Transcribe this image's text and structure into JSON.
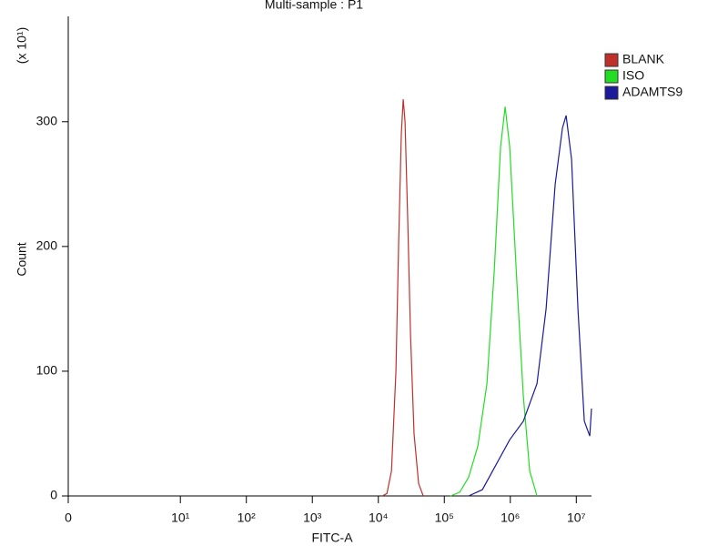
{
  "chart_data": {
    "type": "line",
    "title": "Multi-sample : P1",
    "x_label": "FITC-A",
    "y_label": "Count",
    "y_multiplier": "(x 10¹)",
    "xscale": "biexponential",
    "xlim": [
      0,
      17000000
    ],
    "ylim": [
      0,
      383
    ],
    "xticks": [
      0,
      {
        "value": 10,
        "label": "10¹"
      },
      {
        "value": 100,
        "label": "10²"
      },
      {
        "value": 1000,
        "label": "10³"
      },
      {
        "value": 10000,
        "label": "10⁴"
      },
      {
        "value": 100000,
        "label": "10⁵"
      },
      {
        "value": 1000000,
        "label": "10⁶"
      },
      {
        "value": 10000000,
        "label": "10⁷"
      }
    ],
    "yticks": [
      0,
      100,
      200,
      300
    ],
    "legend": "right",
    "series": [
      {
        "name": "BLANK",
        "color": "#c0302a",
        "x": [
          11500,
          13500,
          15800,
          18500,
          20300,
          22300,
          23800,
          25400,
          27900,
          30700,
          34800,
          40800,
          47900
        ],
        "values": [
          0,
          2,
          20,
          100,
          200,
          290,
          318,
          300,
          220,
          130,
          50,
          10,
          0
        ]
      },
      {
        "name": "ISO",
        "color": "#22dd22",
        "x": [
          124000,
          171000,
          234000,
          322000,
          443000,
          570000,
          713000,
          836000,
          979000,
          1262000,
          1578000,
          1968000,
          2536000
        ],
        "values": [
          0,
          3,
          15,
          40,
          90,
          180,
          280,
          312,
          280,
          170,
          80,
          20,
          0
        ]
      },
      {
        "name": "ADAMTS9",
        "color": "#1a1a9a",
        "x": [
          234000,
          378000,
          608000,
          979000,
          1578000,
          2536000,
          3484000,
          4786000,
          6180000,
          7016000,
          8492000,
          10596000,
          13234000,
          16000000,
          17000000
        ],
        "values": [
          0,
          5,
          25,
          45,
          60,
          90,
          150,
          250,
          295,
          305,
          270,
          150,
          60,
          48,
          70
        ]
      }
    ]
  }
}
